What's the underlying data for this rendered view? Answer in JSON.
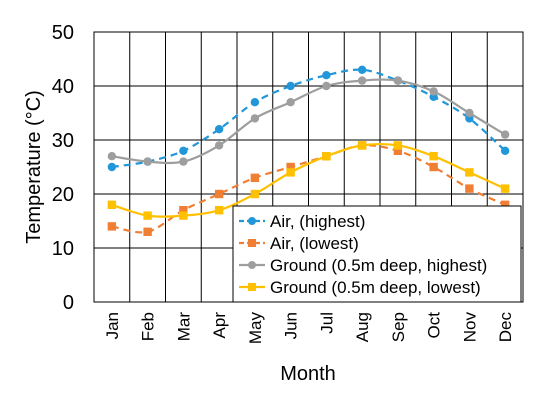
{
  "chart_data": {
    "type": "line",
    "xlabel": "Month",
    "ylabel": "Temperature (°C)",
    "ylim": [
      0,
      50
    ],
    "y_ticks": [
      0,
      10,
      20,
      30,
      40,
      50
    ],
    "grid": "both",
    "legend_position": "bottom-right",
    "categories": [
      "Jan",
      "Feb",
      "Mar",
      "Apr",
      "May",
      "Jun",
      "Jul",
      "Aug",
      "Sep",
      "Oct",
      "Nov",
      "Dec"
    ],
    "series": [
      {
        "name": "Air, (highest)",
        "color": "#2196D9",
        "marker": "circle",
        "line": "dashed",
        "values": [
          25,
          26,
          28,
          32,
          37,
          40,
          42,
          43,
          41,
          38,
          34,
          28
        ]
      },
      {
        "name": "Air, (lowest)",
        "color": "#F07F33",
        "marker": "square",
        "line": "dashed",
        "values": [
          14,
          13,
          17,
          20,
          23,
          25,
          27,
          29,
          28,
          25,
          21,
          18
        ]
      },
      {
        "name": "Ground (0.5m deep, highest)",
        "color": "#9E9E9E",
        "marker": "circle",
        "line": "solid",
        "values": [
          27,
          26,
          26,
          29,
          34,
          37,
          40,
          41,
          41,
          39,
          35,
          31
        ]
      },
      {
        "name": "Ground (0.5m deep, lowest)",
        "color": "#FFC000",
        "marker": "square",
        "line": "solid",
        "values": [
          18,
          16,
          16,
          17,
          20,
          24,
          27,
          29,
          29,
          27,
          24,
          21
        ]
      }
    ]
  }
}
